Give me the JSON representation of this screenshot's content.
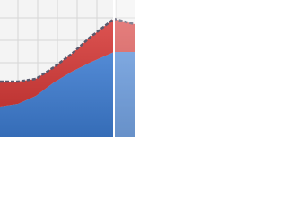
{
  "chart_data": {
    "type": "stacked-area",
    "x": [
      0,
      20,
      40,
      60,
      80,
      100,
      127,
      150
    ],
    "series": [
      {
        "color": "#3c7bd0",
        "values": [
          34,
          37,
          46,
          61,
          73,
          83,
          95,
          95
        ]
      },
      {
        "color": "#d83c3a",
        "values": [
          28,
          25,
          19,
          17,
          20,
          28,
          37,
          31
        ]
      }
    ],
    "xlim": [
      0,
      150
    ],
    "ylim": [
      0,
      153
    ],
    "xticks": [
      20,
      42,
      64,
      86,
      108,
      130
    ],
    "yticks": [
      33,
      58,
      83,
      108,
      133
    ],
    "grid": true,
    "top_line_color": "#5a5a6e",
    "cursor_x": 127
  }
}
